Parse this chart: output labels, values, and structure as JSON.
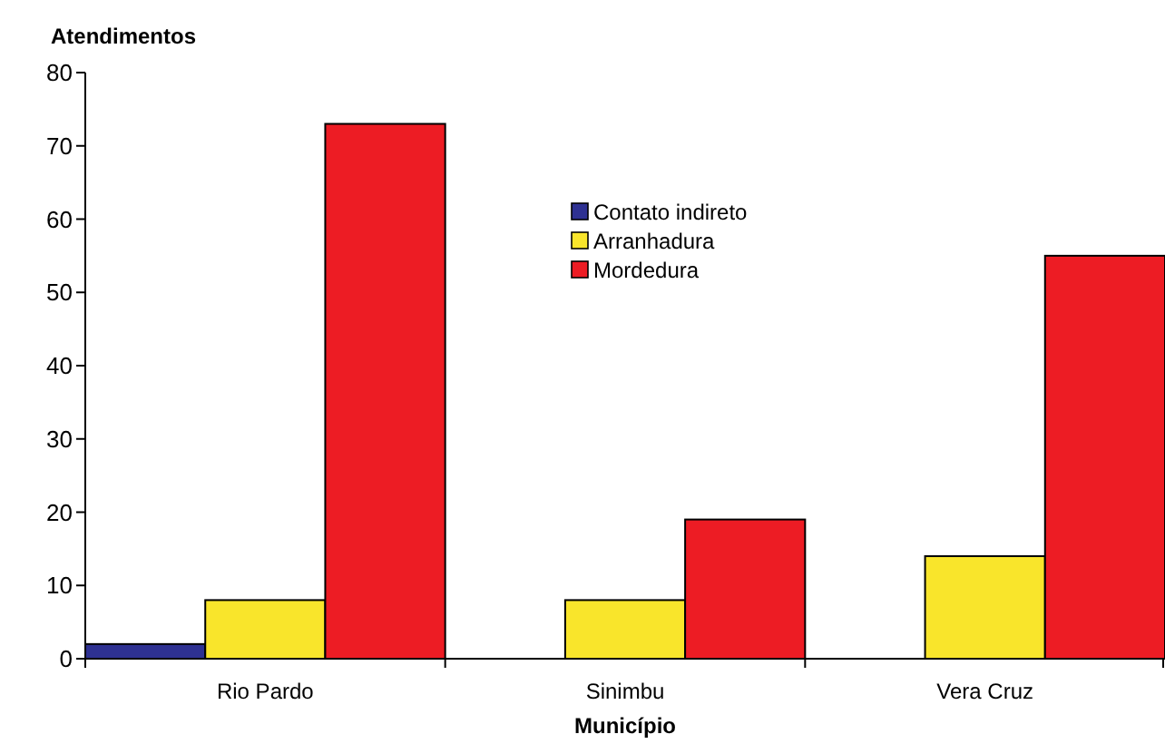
{
  "chart_data": {
    "type": "bar",
    "ylabel": "Atendimentos",
    "xlabel": "Município",
    "categories": [
      "Rio Pardo",
      "Sinimbu",
      "Vera Cruz"
    ],
    "series": [
      {
        "name": "Contato indireto",
        "color": "#2e3192",
        "values": [
          2,
          null,
          null
        ]
      },
      {
        "name": "Arranhadura",
        "color": "#f9e52b",
        "values": [
          8,
          8,
          14
        ]
      },
      {
        "name": "Mordedura",
        "color": "#ed1c24",
        "values": [
          73,
          19,
          55
        ]
      }
    ],
    "ylim": [
      0,
      80
    ],
    "yticks": [
      0,
      10,
      20,
      30,
      40,
      50,
      60,
      70,
      80
    ],
    "grid": false,
    "legend": "top right"
  }
}
